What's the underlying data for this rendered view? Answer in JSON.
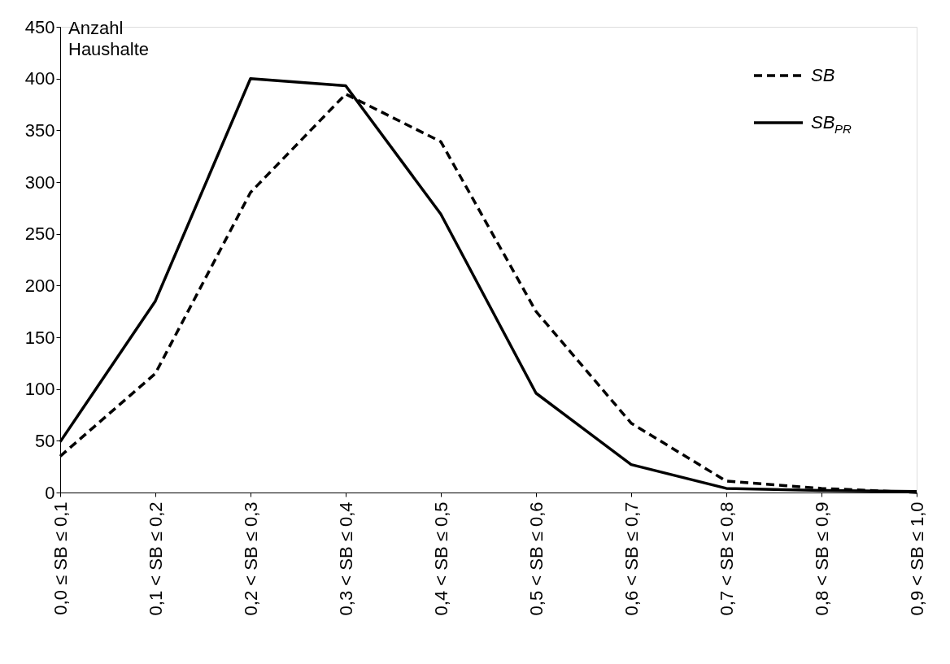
{
  "chart_data": {
    "type": "line",
    "ylabel": "Anzahl Haushalte",
    "categories": [
      "0,0 ≤ SB ≤ 0,1",
      "0,1 < SB ≤ 0,2",
      "0,2 < SB ≤ 0,3",
      "0,3 < SB ≤ 0,4",
      "0,4 < SB ≤ 0,5",
      "0,5 < SB ≤ 0,6",
      "0,6 < SB ≤ 0,7",
      "0,7 < SB ≤ 0,8",
      "0,8 < SB ≤ 0,9",
      "0,9 < SB ≤ 1,0"
    ],
    "series": [
      {
        "name": "SB",
        "color": "#000000",
        "line_style": "dashed",
        "values": [
          35,
          115,
          290,
          385,
          339,
          175,
          67,
          11,
          4,
          0
        ]
      },
      {
        "name": "SB$_{PR}$",
        "color": "#000000",
        "line_style": "solid",
        "values": [
          49,
          185,
          400,
          393,
          269,
          96,
          27,
          4,
          2,
          1
        ]
      }
    ],
    "ylim": [
      0,
      450
    ],
    "yticks": [
      0,
      50,
      100,
      150,
      200,
      250,
      300,
      350,
      400,
      450
    ],
    "grid": false,
    "legend": "top right"
  }
}
